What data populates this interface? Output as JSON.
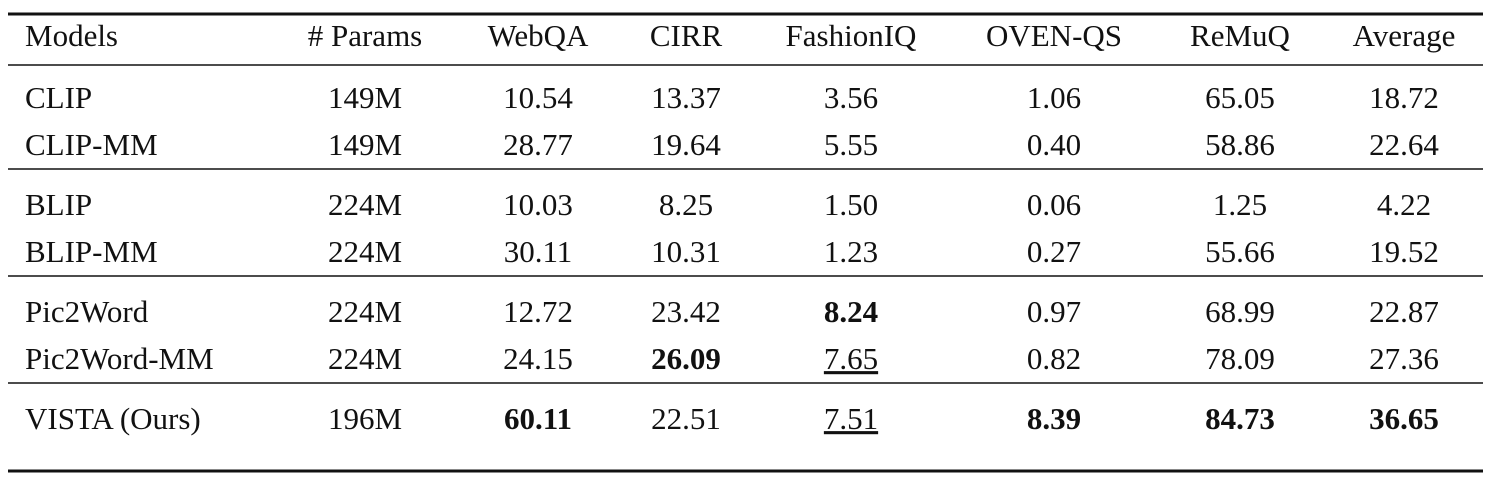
{
  "table": {
    "header": [
      "Models",
      "# Params",
      "WebQA",
      "CIRR",
      "FashionIQ",
      "OVEN-QS",
      "ReMuQ",
      "Average"
    ],
    "groups": [
      [
        [
          "CLIP",
          "149M",
          "10.54",
          "13.37",
          "3.56",
          "1.06",
          "65.05",
          "18.72"
        ],
        [
          "CLIP-MM",
          "149M",
          "28.77",
          "19.64",
          "5.55",
          "0.40",
          "58.86",
          "22.64"
        ]
      ],
      [
        [
          "BLIP",
          "224M",
          "10.03",
          "8.25",
          "1.50",
          "0.06",
          "1.25",
          "4.22"
        ],
        [
          "BLIP-MM",
          "224M",
          "30.11",
          "10.31",
          "1.23",
          "0.27",
          "55.66",
          "19.52"
        ]
      ],
      [
        [
          "Pic2Word",
          "224M",
          "12.72",
          "23.42",
          "8.24",
          "0.97",
          "68.99",
          "22.87"
        ],
        [
          "Pic2Word-MM",
          "224M",
          "24.15",
          "26.09",
          "7.65",
          "0.82",
          "78.09",
          "27.36"
        ]
      ],
      [
        [
          "VISTA (Ours)",
          "196M",
          "60.11",
          "22.51",
          "7.51",
          "8.39",
          "84.73",
          "36.65"
        ]
      ]
    ]
  }
}
